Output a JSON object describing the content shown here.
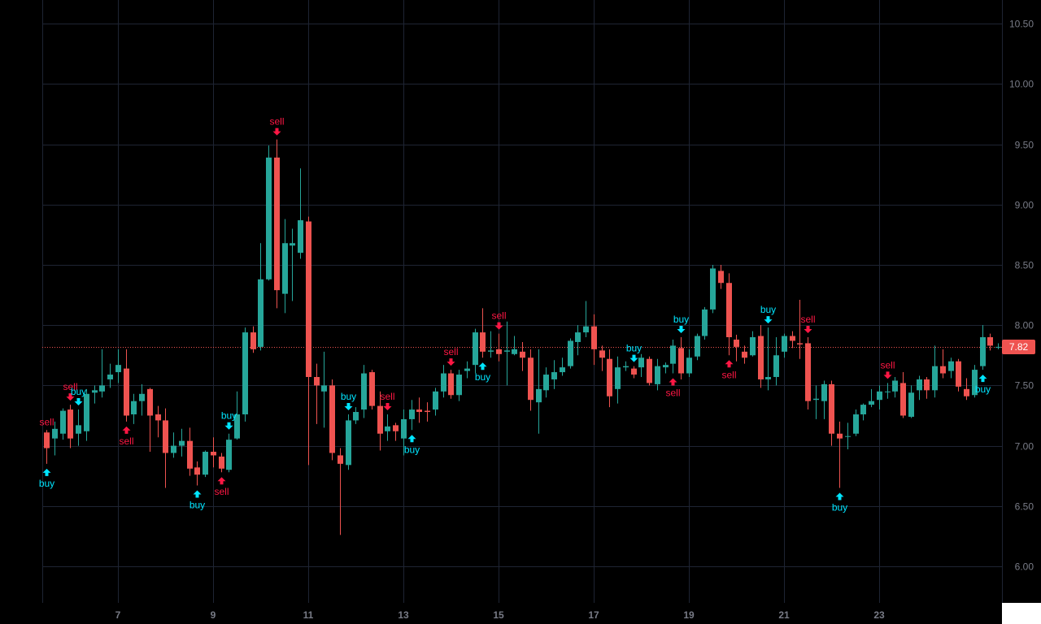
{
  "chart_data": {
    "type": "candlestick",
    "x_axis": {
      "tick_labels": [
        "7",
        "9",
        "11",
        "13",
        "15",
        "17",
        "19",
        "21",
        "23"
      ]
    },
    "y_axis": {
      "position": "right",
      "ticks": [
        "6.00",
        "6.50",
        "7.00",
        "7.50",
        "8.00",
        "8.50",
        "9.00",
        "9.50",
        "10.00",
        "10.50"
      ],
      "range": [
        5.7,
        10.7
      ]
    },
    "grid": true,
    "last_price": {
      "value": 7.82,
      "label": "7.82"
    },
    "colors": {
      "up": "#26a69a",
      "down": "#ef5350",
      "grid": "#1e2433",
      "axis_text": "#787b86",
      "buy": "#00e5ff",
      "sell": "#ff1744",
      "price_line": "#ef5350"
    },
    "candles": [
      [
        7.11,
        6.98,
        7.13,
        6.85
      ],
      [
        7.06,
        7.14,
        7.2,
        6.92
      ],
      [
        7.1,
        7.29,
        7.31,
        7.05
      ],
      [
        7.3,
        7.06,
        7.34,
        6.98
      ],
      [
        7.1,
        7.17,
        7.3,
        7.0
      ],
      [
        7.12,
        7.43,
        7.47,
        7.04
      ],
      [
        7.44,
        7.46,
        7.5,
        7.35
      ],
      [
        7.45,
        7.5,
        7.8,
        7.4
      ],
      [
        7.55,
        7.59,
        7.68,
        7.48
      ],
      [
        7.61,
        7.67,
        7.8,
        7.52
      ],
      [
        7.64,
        7.25,
        7.8,
        7.2
      ],
      [
        7.26,
        7.37,
        7.43,
        7.18
      ],
      [
        7.37,
        7.43,
        7.51,
        7.25
      ],
      [
        7.47,
        7.25,
        7.48,
        6.95
      ],
      [
        7.26,
        7.21,
        7.33,
        7.07
      ],
      [
        7.21,
        6.94,
        7.31,
        6.65
      ],
      [
        6.94,
        7.0,
        7.11,
        6.9
      ],
      [
        7.0,
        7.04,
        7.14,
        6.91
      ],
      [
        7.04,
        6.81,
        7.15,
        6.75
      ],
      [
        6.82,
        6.76,
        6.87,
        6.67
      ],
      [
        6.76,
        6.95,
        6.96,
        6.74
      ],
      [
        6.95,
        6.92,
        7.07,
        6.82
      ],
      [
        6.91,
        6.81,
        6.94,
        6.78
      ],
      [
        6.8,
        7.05,
        7.1,
        6.78
      ],
      [
        7.06,
        7.26,
        7.45,
        7.05
      ],
      [
        7.26,
        7.94,
        7.98,
        7.2
      ],
      [
        7.94,
        7.8,
        7.99,
        7.77
      ],
      [
        7.82,
        8.38,
        8.68,
        7.79
      ],
      [
        8.38,
        9.39,
        9.49,
        8.37
      ],
      [
        9.39,
        8.29,
        9.54,
        8.14
      ],
      [
        8.26,
        8.68,
        8.88,
        8.1
      ],
      [
        8.66,
        8.68,
        8.8,
        8.2
      ],
      [
        8.6,
        8.87,
        9.3,
        8.55
      ],
      [
        8.86,
        7.57,
        8.9,
        6.84
      ],
      [
        7.57,
        7.5,
        7.68,
        7.18
      ],
      [
        7.45,
        7.5,
        7.78,
        7.15
      ],
      [
        7.5,
        6.94,
        7.55,
        6.88
      ],
      [
        6.92,
        6.85,
        6.98,
        6.26
      ],
      [
        6.84,
        7.21,
        7.26,
        6.8
      ],
      [
        7.21,
        7.28,
        7.32,
        7.18
      ],
      [
        7.3,
        7.6,
        7.67,
        7.23
      ],
      [
        7.61,
        7.33,
        7.63,
        7.3
      ],
      [
        7.33,
        7.1,
        7.45,
        6.96
      ],
      [
        7.12,
        7.16,
        7.26,
        7.04
      ],
      [
        7.17,
        7.12,
        7.19,
        7.04
      ],
      [
        7.06,
        7.22,
        7.3,
        6.92
      ],
      [
        7.22,
        7.3,
        7.38,
        7.13
      ],
      [
        7.3,
        7.28,
        7.4,
        7.19
      ],
      [
        7.29,
        7.28,
        7.36,
        7.2
      ],
      [
        7.3,
        7.45,
        7.48,
        7.25
      ],
      [
        7.45,
        7.6,
        7.67,
        7.4
      ],
      [
        7.6,
        7.42,
        7.63,
        7.39
      ],
      [
        7.42,
        7.59,
        7.63,
        7.37
      ],
      [
        7.62,
        7.64,
        7.7,
        7.56
      ],
      [
        7.67,
        7.94,
        7.97,
        7.6
      ],
      [
        7.94,
        7.78,
        8.14,
        7.73
      ],
      [
        7.78,
        7.79,
        7.95,
        7.73
      ],
      [
        7.8,
        7.76,
        7.93,
        7.7
      ],
      [
        7.78,
        7.79,
        8.03,
        7.5
      ],
      [
        7.76,
        7.8,
        7.91,
        7.75
      ],
      [
        7.78,
        7.73,
        7.86,
        7.62
      ],
      [
        7.73,
        7.38,
        7.8,
        7.29
      ],
      [
        7.36,
        7.47,
        7.8,
        7.1
      ],
      [
        7.46,
        7.59,
        7.65,
        7.4
      ],
      [
        7.55,
        7.61,
        7.71,
        7.47
      ],
      [
        7.61,
        7.65,
        7.73,
        7.58
      ],
      [
        7.66,
        7.87,
        7.89,
        7.64
      ],
      [
        7.86,
        7.94,
        8.0,
        7.75
      ],
      [
        7.94,
        7.99,
        8.2,
        7.9
      ],
      [
        7.99,
        7.8,
        8.09,
        7.67
      ],
      [
        7.79,
        7.73,
        7.83,
        7.62
      ],
      [
        7.72,
        7.41,
        7.8,
        7.32
      ],
      [
        7.47,
        7.65,
        7.74,
        7.35
      ],
      [
        7.65,
        7.66,
        7.7,
        7.62
      ],
      [
        7.64,
        7.59,
        7.66,
        7.56
      ],
      [
        7.65,
        7.73,
        7.76,
        7.57
      ],
      [
        7.72,
        7.52,
        7.74,
        7.5
      ],
      [
        7.51,
        7.66,
        7.72,
        7.46
      ],
      [
        7.65,
        7.67,
        7.69,
        7.6
      ],
      [
        7.68,
        7.83,
        7.88,
        7.6
      ],
      [
        7.81,
        7.6,
        7.9,
        7.55
      ],
      [
        7.6,
        7.73,
        7.8,
        7.57
      ],
      [
        7.74,
        7.91,
        7.93,
        7.71
      ],
      [
        7.91,
        8.13,
        8.15,
        7.88
      ],
      [
        8.13,
        8.47,
        8.5,
        8.1
      ],
      [
        8.45,
        8.35,
        8.5,
        8.3
      ],
      [
        8.35,
        7.9,
        8.43,
        7.75
      ],
      [
        7.88,
        7.82,
        7.92,
        7.7
      ],
      [
        7.78,
        7.73,
        7.83,
        7.68
      ],
      [
        7.75,
        7.9,
        7.95,
        7.74
      ],
      [
        7.91,
        7.55,
        8.0,
        7.48
      ],
      [
        7.55,
        7.57,
        7.98,
        7.46
      ],
      [
        7.57,
        7.75,
        7.9,
        7.5
      ],
      [
        7.78,
        7.91,
        7.93,
        7.73
      ],
      [
        7.91,
        7.87,
        7.95,
        7.81
      ],
      [
        7.85,
        7.84,
        8.21,
        7.72
      ],
      [
        7.85,
        7.37,
        7.9,
        7.3
      ],
      [
        7.38,
        7.39,
        7.5,
        7.22
      ],
      [
        7.37,
        7.51,
        7.54,
        7.22
      ],
      [
        7.51,
        7.1,
        7.54,
        7.0
      ],
      [
        7.1,
        7.06,
        7.2,
        6.65
      ],
      [
        7.08,
        7.08,
        7.19,
        6.97
      ],
      [
        7.1,
        7.26,
        7.3,
        7.08
      ],
      [
        7.26,
        7.34,
        7.35,
        7.21
      ],
      [
        7.34,
        7.37,
        7.47,
        7.32
      ],
      [
        7.38,
        7.45,
        7.5,
        7.3
      ],
      [
        7.45,
        7.45,
        7.52,
        7.39
      ],
      [
        7.45,
        7.54,
        7.57,
        7.4
      ],
      [
        7.52,
        7.25,
        7.61,
        7.23
      ],
      [
        7.24,
        7.44,
        7.5,
        7.23
      ],
      [
        7.46,
        7.55,
        7.58,
        7.38
      ],
      [
        7.55,
        7.46,
        7.57,
        7.39
      ],
      [
        7.46,
        7.66,
        7.83,
        7.4
      ],
      [
        7.66,
        7.6,
        7.8,
        7.56
      ],
      [
        7.62,
        7.7,
        7.73,
        7.56
      ],
      [
        7.7,
        7.49,
        7.72,
        7.45
      ],
      [
        7.47,
        7.41,
        7.56,
        7.38
      ],
      [
        7.42,
        7.63,
        7.67,
        7.4
      ],
      [
        7.66,
        7.9,
        8.0,
        7.63
      ],
      [
        7.9,
        7.83,
        7.93,
        7.79
      ],
      [
        7.82,
        7.82,
        7.85,
        7.8
      ]
    ],
    "signals": [
      {
        "i": 0,
        "type": "sell",
        "label": "sell"
      },
      {
        "i": 0,
        "type": "buy",
        "label": "buy"
      },
      {
        "i": 3,
        "type": "sell",
        "label": "sell"
      },
      {
        "i": 4,
        "type": "buy",
        "label": "buy"
      },
      {
        "i": 10,
        "type": "sell",
        "label": "sell"
      },
      {
        "i": 19,
        "type": "buy",
        "label": "buy"
      },
      {
        "i": 22,
        "type": "sell",
        "label": "sell"
      },
      {
        "i": 23,
        "type": "buy",
        "label": "buy"
      },
      {
        "i": 29,
        "type": "sell",
        "label": "sell"
      },
      {
        "i": 38,
        "type": "buy",
        "label": "buy"
      },
      {
        "i": 43,
        "type": "sell",
        "label": "sell"
      },
      {
        "i": 46,
        "type": "buy",
        "label": "buy"
      },
      {
        "i": 51,
        "type": "sell",
        "label": "sell"
      },
      {
        "i": 55,
        "type": "buy",
        "label": "buy"
      },
      {
        "i": 57,
        "type": "sell",
        "label": "sell"
      },
      {
        "i": 74,
        "type": "buy",
        "label": "buy"
      },
      {
        "i": 79,
        "type": "sell",
        "label": "sell"
      },
      {
        "i": 80,
        "type": "buy",
        "label": "buy"
      },
      {
        "i": 86,
        "type": "sell",
        "label": "sell"
      },
      {
        "i": 91,
        "type": "buy",
        "label": "buy"
      },
      {
        "i": 96,
        "type": "sell",
        "label": "sell"
      },
      {
        "i": 100,
        "type": "buy",
        "label": "buy"
      },
      {
        "i": 106,
        "type": "sell",
        "label": "sell"
      },
      {
        "i": 118,
        "type": "buy",
        "label": "buy"
      }
    ]
  }
}
